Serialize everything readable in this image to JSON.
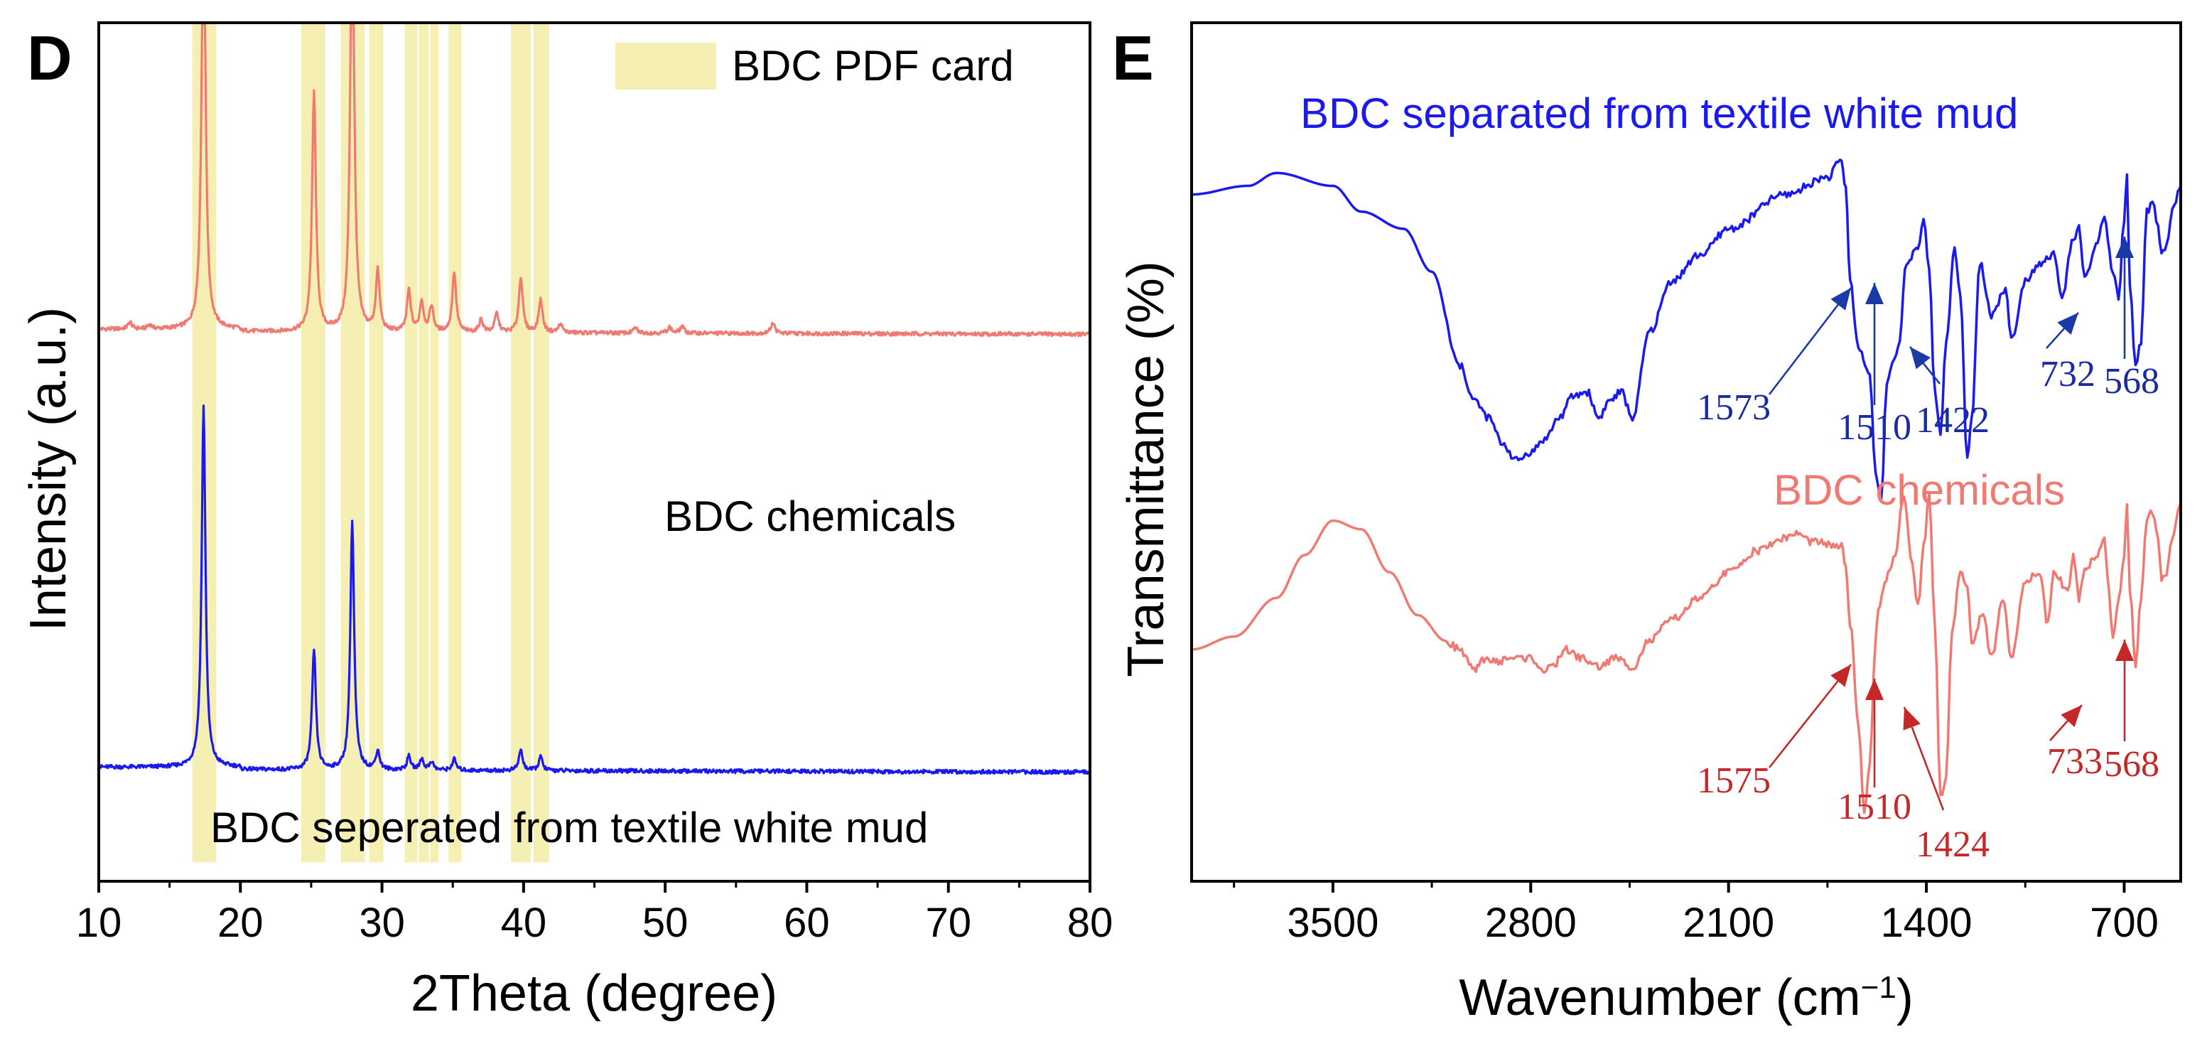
{
  "colors": {
    "blue": "#1a1aef",
    "pink": "#f07a72",
    "band": "#f5efb4",
    "arrow_blue": "#1a3aa8",
    "arrow_red": "#c42828",
    "axis": "#000000"
  },
  "chart_data": [
    {
      "type": "line",
      "panel": "D",
      "title": "",
      "xlabel": "2Theta (degree)",
      "ylabel": "Intensity (a.u.)",
      "xlim": [
        10,
        80
      ],
      "ylim": [
        0,
        100
      ],
      "xticks": [
        10,
        20,
        30,
        40,
        50,
        60,
        70,
        80
      ],
      "xtick_labels": [
        "10",
        "20",
        "30",
        "40",
        "50",
        "60",
        "70",
        "80"
      ],
      "legend": {
        "label": "BDC PDF card",
        "position": "top-right"
      },
      "pdf_card_bands": [
        {
          "from": 16.6,
          "to": 18.3
        },
        {
          "from": 24.3,
          "to": 26.0
        },
        {
          "from": 27.1,
          "to": 28.8
        },
        {
          "from": 29.1,
          "to": 30.1
        },
        {
          "from": 31.6,
          "to": 32.5
        },
        {
          "from": 32.6,
          "to": 33.3
        },
        {
          "from": 33.4,
          "to": 34.0
        },
        {
          "from": 34.7,
          "to": 35.6
        },
        {
          "from": 39.1,
          "to": 40.5
        },
        {
          "from": 40.7,
          "to": 41.8
        }
      ],
      "series": [
        {
          "name": "BDC chemicals",
          "color_key": "pink",
          "label": "BDC chemicals",
          "baseline": 64,
          "peaks": [
            {
              "x": 12.2,
              "h": 0.8
            },
            {
              "x": 13.6,
              "h": 0.5
            },
            {
              "x": 17.4,
              "h": 52
            },
            {
              "x": 25.2,
              "h": 28
            },
            {
              "x": 27.9,
              "h": 52
            },
            {
              "x": 29.7,
              "h": 7
            },
            {
              "x": 31.9,
              "h": 4.8
            },
            {
              "x": 32.8,
              "h": 3.5
            },
            {
              "x": 33.5,
              "h": 3.0
            },
            {
              "x": 35.1,
              "h": 7
            },
            {
              "x": 37.0,
              "h": 1.5
            },
            {
              "x": 38.1,
              "h": 2.2
            },
            {
              "x": 39.8,
              "h": 6.5
            },
            {
              "x": 41.2,
              "h": 3.8
            },
            {
              "x": 42.6,
              "h": 1.0
            },
            {
              "x": 47.9,
              "h": 0.6
            },
            {
              "x": 50.3,
              "h": 0.7
            },
            {
              "x": 51.2,
              "h": 0.8
            },
            {
              "x": 57.6,
              "h": 1.3
            }
          ]
        },
        {
          "name": "BDC seperated from textile white mud",
          "color_key": "blue",
          "label": "BDC seperated from textile white mud",
          "baseline": 13,
          "peaks": [
            {
              "x": 17.4,
              "h": 42
            },
            {
              "x": 25.2,
              "h": 14
            },
            {
              "x": 27.9,
              "h": 29
            },
            {
              "x": 29.7,
              "h": 2.2
            },
            {
              "x": 31.9,
              "h": 1.6
            },
            {
              "x": 32.8,
              "h": 1.3
            },
            {
              "x": 33.5,
              "h": 1.0
            },
            {
              "x": 35.1,
              "h": 1.3
            },
            {
              "x": 39.8,
              "h": 2.4
            },
            {
              "x": 41.2,
              "h": 1.6
            }
          ]
        }
      ]
    },
    {
      "type": "line",
      "panel": "E",
      "title": "",
      "xlabel": "Wavenumber (cm⁻¹)",
      "ylabel": "Transmittance (%)",
      "xlim": [
        4000,
        500
      ],
      "ylim": [
        0,
        100
      ],
      "xticks": [
        3500,
        2800,
        2100,
        1400,
        700
      ],
      "xtick_labels": [
        "3500",
        "2800",
        "2100",
        "1400",
        "700"
      ],
      "series": [
        {
          "name": "BDC separated from textile white mud",
          "color_key": "blue",
          "label": "BDC separated from textile white mud",
          "points": [
            [
              4000,
              80
            ],
            [
              3800,
              81
            ],
            [
              3700,
              82.5
            ],
            [
              3500,
              81
            ],
            [
              3400,
              78
            ],
            [
              3250,
              76
            ],
            [
              3150,
              71
            ],
            [
              3050,
              60
            ],
            [
              3000,
              56
            ],
            [
              2950,
              54
            ],
            [
              2900,
              51
            ],
            [
              2850,
              49
            ],
            [
              2800,
              50
            ],
            [
              2750,
              51.5
            ],
            [
              2700,
              54
            ],
            [
              2650,
              56.5
            ],
            [
              2600,
              57
            ],
            [
              2560,
              54
            ],
            [
              2520,
              56
            ],
            [
              2480,
              57
            ],
            [
              2440,
              54
            ],
            [
              2380,
              64
            ],
            [
              2300,
              70
            ],
            [
              2200,
              73
            ],
            [
              2100,
              76
            ],
            [
              1900,
              80
            ],
            [
              1750,
              82
            ],
            [
              1700,
              84
            ],
            [
              1685,
              80.5
            ],
            [
              1670,
              70
            ],
            [
              1640,
              62
            ],
            [
              1600,
              59
            ],
            [
              1580,
              48
            ],
            [
              1560,
              44
            ],
            [
              1540,
              58
            ],
            [
              1520,
              60
            ],
            [
              1500,
              62
            ],
            [
              1470,
              72
            ],
            [
              1430,
              74
            ],
            [
              1410,
              77
            ],
            [
              1390,
              71
            ],
            [
              1370,
              57
            ],
            [
              1350,
              52
            ],
            [
              1330,
              63
            ],
            [
              1300,
              74
            ],
            [
              1280,
              68
            ],
            [
              1255,
              49
            ],
            [
              1240,
              54
            ],
            [
              1210,
              72
            ],
            [
              1170,
              66
            ],
            [
              1120,
              69
            ],
            [
              1100,
              63
            ],
            [
              1050,
              70
            ],
            [
              1000,
              72
            ],
            [
              950,
              73
            ],
            [
              920,
              68
            ],
            [
              880,
              75
            ],
            [
              860,
              76
            ],
            [
              840,
              70
            ],
            [
              800,
              74
            ],
            [
              770,
              77
            ],
            [
              740,
              71
            ],
            [
              720,
              68
            ],
            [
              700,
              77
            ],
            [
              690,
              82
            ],
            [
              680,
              69
            ],
            [
              660,
              60
            ],
            [
              640,
              63
            ],
            [
              620,
              78
            ],
            [
              600,
              79
            ],
            [
              580,
              76
            ],
            [
              568,
              73
            ],
            [
              550,
              74
            ],
            [
              530,
              78
            ],
            [
              510,
              80
            ],
            [
              500,
              81
            ]
          ],
          "annotations": [
            {
              "text": "1573",
              "wavenumber": 1573
            },
            {
              "text": "1510",
              "wavenumber": 1510
            },
            {
              "text": "1422",
              "wavenumber": 1422
            },
            {
              "text": "732",
              "wavenumber": 732
            },
            {
              "text": "568",
              "wavenumber": 568
            }
          ]
        },
        {
          "name": "BDC chemicals",
          "color_key": "pink",
          "label": "BDC chemicals",
          "points": [
            [
              4000,
              27
            ],
            [
              3850,
              28.5
            ],
            [
              3700,
              33
            ],
            [
              3600,
              38
            ],
            [
              3500,
              42
            ],
            [
              3400,
              41
            ],
            [
              3300,
              36
            ],
            [
              3200,
              31
            ],
            [
              3100,
              28
            ],
            [
              3050,
              27
            ],
            [
              3000,
              24.5
            ],
            [
              2960,
              26
            ],
            [
              2920,
              25.5
            ],
            [
              2880,
              26
            ],
            [
              2800,
              26
            ],
            [
              2750,
              24.5
            ],
            [
              2720,
              25
            ],
            [
              2680,
              27
            ],
            [
              2620,
              26
            ],
            [
              2560,
              25
            ],
            [
              2500,
              26
            ],
            [
              2440,
              25
            ],
            [
              2380,
              28
            ],
            [
              2300,
              30.5
            ],
            [
              2200,
              33
            ],
            [
              2100,
              36
            ],
            [
              2000,
              38.5
            ],
            [
              1900,
              40
            ],
            [
              1860,
              40.5
            ],
            [
              1800,
              39.5
            ],
            [
              1700,
              39
            ],
            [
              1685,
              36.5
            ],
            [
              1670,
              30
            ],
            [
              1640,
              18
            ],
            [
              1620,
              8
            ],
            [
              1600,
              14
            ],
            [
              1580,
              28
            ],
            [
              1570,
              32
            ],
            [
              1530,
              36
            ],
            [
              1510,
              38
            ],
            [
              1480,
              45
            ],
            [
              1450,
              37
            ],
            [
              1430,
              32
            ],
            [
              1410,
              39
            ],
            [
              1390,
              45
            ],
            [
              1370,
              30
            ],
            [
              1350,
              10
            ],
            [
              1330,
              12
            ],
            [
              1310,
              29
            ],
            [
              1280,
              36
            ],
            [
              1255,
              34
            ],
            [
              1240,
              28
            ],
            [
              1200,
              31
            ],
            [
              1170,
              26
            ],
            [
              1130,
              33
            ],
            [
              1100,
              26
            ],
            [
              1050,
              35
            ],
            [
              1000,
              36
            ],
            [
              970,
              30
            ],
            [
              950,
              36
            ],
            [
              900,
              34
            ],
            [
              880,
              38
            ],
            [
              860,
              33
            ],
            [
              840,
              36
            ],
            [
              800,
              38
            ],
            [
              770,
              40
            ],
            [
              760,
              36
            ],
            [
              740,
              28
            ],
            [
              720,
              33
            ],
            [
              700,
              38
            ],
            [
              690,
              44
            ],
            [
              680,
              34
            ],
            [
              660,
              25
            ],
            [
              640,
              33
            ],
            [
              620,
              42
            ],
            [
              600,
              43
            ],
            [
              580,
              40
            ],
            [
              568,
              35
            ],
            [
              550,
              36
            ],
            [
              530,
              40
            ],
            [
              510,
              43
            ],
            [
              500,
              44
            ]
          ],
          "annotations": [
            {
              "text": "1575",
              "wavenumber": 1575
            },
            {
              "text": "1510",
              "wavenumber": 1510
            },
            {
              "text": "1424",
              "wavenumber": 1424
            },
            {
              "text": "733",
              "wavenumber": 733
            },
            {
              "text": "568",
              "wavenumber": 568
            }
          ]
        }
      ]
    }
  ]
}
